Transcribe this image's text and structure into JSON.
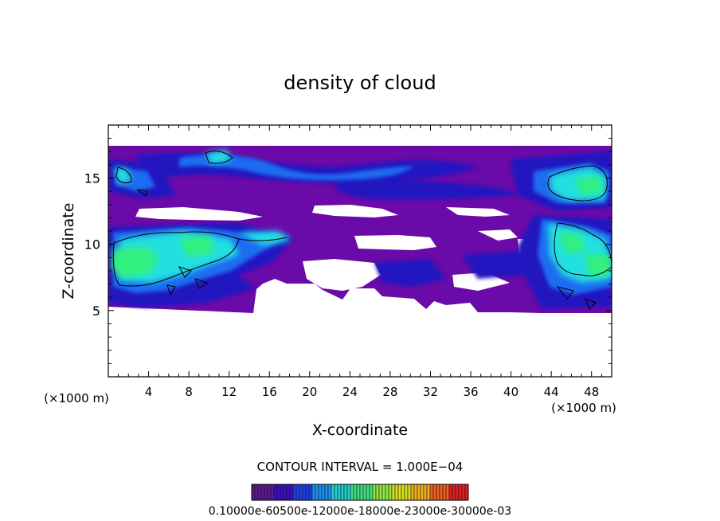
{
  "chart_data": {
    "type": "heatmap",
    "title": "density of cloud",
    "xlabel": "X-coordinate",
    "ylabel": "Z-coordinate",
    "x_unit": "(×1000 m)",
    "y_unit": "(×1000 m)",
    "xlim": [
      0,
      50
    ],
    "ylim": [
      0,
      19
    ],
    "x_ticks": [
      "4",
      "8",
      "12",
      "16",
      "20",
      "24",
      "28",
      "32",
      "36",
      "40",
      "44",
      "48"
    ],
    "y_ticks": [
      "5",
      "10",
      "15"
    ],
    "contour_interval_text": "CONTOUR INTERVAL = 1.000E−04",
    "colorbar_label": "0.10000e-60500e-12000e-18000e-23000e-30000e-03",
    "colors": {
      "low": "#6a0aa8",
      "low2": "#2a10c8",
      "mid": "#1e6cf0",
      "high": "#22e0e0",
      "peak": "#30f080",
      "contour": "#000000"
    },
    "colorbar_colors": [
      "#5a1a90",
      "#3a10c0",
      "#1e40e8",
      "#1e90f0",
      "#20d0d0",
      "#40e080",
      "#90e840",
      "#d8e020",
      "#f0b020",
      "#f06020",
      "#e02020"
    ],
    "cloud_top_z": 18.2,
    "cloud_base_z": 5.4
  }
}
